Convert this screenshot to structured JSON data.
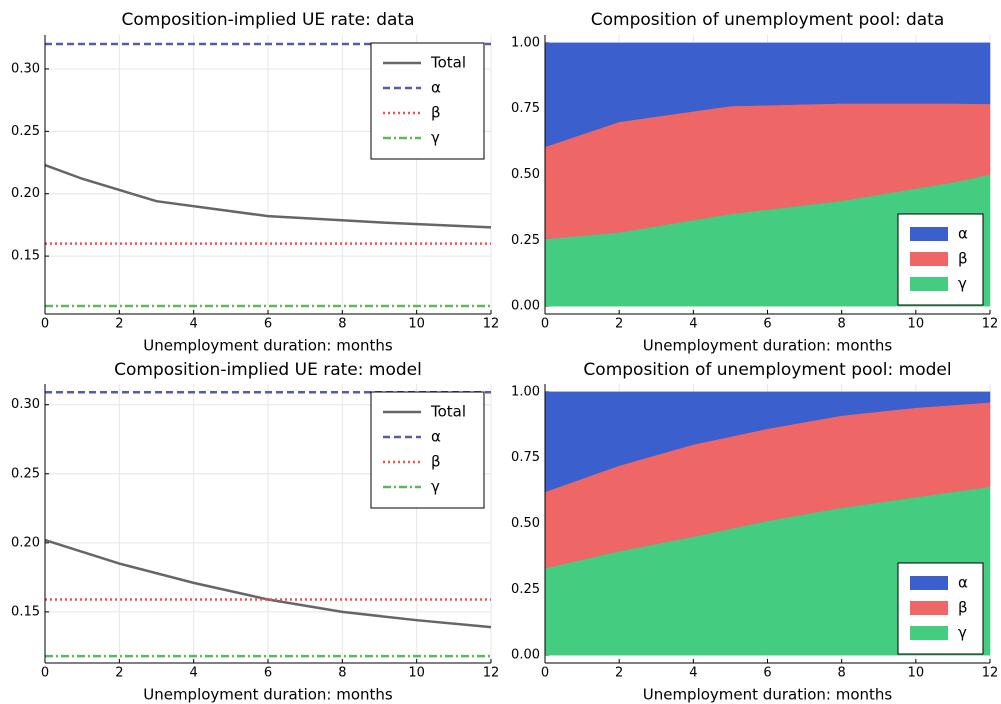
{
  "chart_data": [
    {
      "type": "line",
      "title": "Composition-implied UE rate: data",
      "xlabel": "Unemployment duration: months",
      "xlim": [
        0,
        12
      ],
      "xticks": [
        0,
        2,
        4,
        6,
        8,
        10,
        12
      ],
      "ylim": [
        0.1036,
        0.3272
      ],
      "yticks": [
        0.15,
        {
          "value": 0.2,
          "label": "0.20"
        },
        0.25,
        {
          "value": 0.3,
          "label": "0.30"
        }
      ],
      "grid": true,
      "legend": "top-right",
      "series": [
        {
          "name": "Total",
          "color": "#666666",
          "dash": "solid",
          "x": [
            0,
            1,
            3,
            6,
            9,
            12
          ],
          "values": [
            0.223,
            0.212,
            0.194,
            0.182,
            0.177,
            0.173
          ]
        },
        {
          "name": "α",
          "color": "#5a5aa8",
          "dash": "dash",
          "x": [
            0,
            12
          ],
          "values": [
            0.32,
            0.32
          ]
        },
        {
          "name": "β",
          "color": "#f05050",
          "dash": "dot",
          "x": [
            0,
            12
          ],
          "values": [
            0.16,
            0.16
          ]
        },
        {
          "name": "γ",
          "color": "#5cb85c",
          "dash": "dashdot",
          "x": [
            0,
            12
          ],
          "values": [
            0.11,
            0.11
          ]
        }
      ]
    },
    {
      "type": "area",
      "title": "Composition of unemployment pool: data",
      "xlabel": "Unemployment duration: months",
      "xlim": [
        0,
        12
      ],
      "xticks": [
        0,
        2,
        4,
        6,
        8,
        10,
        12
      ],
      "ylim": [
        -0.03,
        1.03
      ],
      "yticks": [
        {
          "value": 0,
          "label": "0.00"
        },
        0.25,
        {
          "value": 0.5,
          "label": "0.50"
        },
        0.75,
        {
          "value": 1,
          "label": "1.00"
        }
      ],
      "grid": true,
      "legend": "bottom-right",
      "x": [
        0,
        2,
        5,
        8,
        11,
        12
      ],
      "series": [
        {
          "name": "α",
          "color": "#3b5fcd",
          "values": [
            0.395,
            0.3,
            0.24,
            0.23,
            0.23,
            0.232
          ]
        },
        {
          "name": "β",
          "color": "#ee6666",
          "values": [
            0.35,
            0.42,
            0.41,
            0.37,
            0.3,
            0.268
          ]
        },
        {
          "name": "γ",
          "color": "#44cc80",
          "values": [
            0.255,
            0.28,
            0.35,
            0.4,
            0.47,
            0.5
          ]
        }
      ]
    },
    {
      "type": "line",
      "title": "Composition-implied UE rate: model",
      "xlabel": "Unemployment duration: months",
      "xlim": [
        0,
        12
      ],
      "xticks": [
        0,
        2,
        4,
        6,
        8,
        10,
        12
      ],
      "ylim": [
        0.113,
        0.315
      ],
      "yticks": [
        0.15,
        {
          "value": 0.2,
          "label": "0.20"
        },
        0.25,
        {
          "value": 0.3,
          "label": "0.30"
        }
      ],
      "grid": true,
      "legend": "top-right",
      "series": [
        {
          "name": "Total",
          "color": "#666666",
          "dash": "solid",
          "x": [
            0,
            2,
            4,
            6,
            8,
            10,
            12
          ],
          "values": [
            0.202,
            0.185,
            0.171,
            0.159,
            0.15,
            0.144,
            0.139
          ]
        },
        {
          "name": "α",
          "color": "#5a5aa8",
          "dash": "dash",
          "x": [
            0,
            12
          ],
          "values": [
            0.309,
            0.309
          ]
        },
        {
          "name": "β",
          "color": "#f05050",
          "dash": "dot",
          "x": [
            0,
            12
          ],
          "values": [
            0.159,
            0.159
          ]
        },
        {
          "name": "γ",
          "color": "#5cb85c",
          "dash": "dashdot",
          "x": [
            0,
            12
          ],
          "values": [
            0.118,
            0.118
          ]
        }
      ]
    },
    {
      "type": "area",
      "title": "Composition of unemployment pool: model",
      "xlabel": "Unemployment duration: months",
      "xlim": [
        0,
        12
      ],
      "xticks": [
        0,
        2,
        4,
        6,
        8,
        10,
        12
      ],
      "ylim": [
        -0.03,
        1.03
      ],
      "yticks": [
        {
          "value": 0,
          "label": "0.00"
        },
        0.25,
        {
          "value": 0.5,
          "label": "0.50"
        },
        0.75,
        {
          "value": 1,
          "label": "1.00"
        }
      ],
      "grid": true,
      "legend": "bottom-right",
      "x": [
        0,
        2,
        4,
        6,
        8,
        10,
        12
      ],
      "series": [
        {
          "name": "α",
          "color": "#3b5fcd",
          "values": [
            0.38,
            0.28,
            0.2,
            0.14,
            0.09,
            0.06,
            0.04
          ]
        },
        {
          "name": "β",
          "color": "#ee6666",
          "values": [
            0.29,
            0.325,
            0.35,
            0.35,
            0.35,
            0.34,
            0.32
          ]
        },
        {
          "name": "γ",
          "color": "#44cc80",
          "values": [
            0.33,
            0.395,
            0.45,
            0.51,
            0.56,
            0.6,
            0.64
          ]
        }
      ]
    }
  ]
}
